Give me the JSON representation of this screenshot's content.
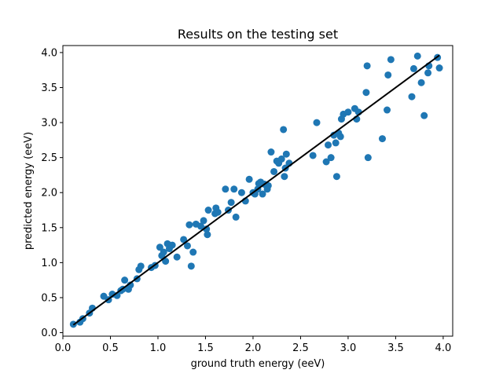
{
  "chart_data": {
    "type": "scatter",
    "title": "Results on the testing set",
    "xlabel": "ground truth energy (eeV)",
    "ylabel": "predicted energy (eeV)",
    "xlim": [
      0.0,
      4.1
    ],
    "ylim": [
      -0.05,
      4.1
    ],
    "xticks": [
      0.0,
      0.5,
      1.0,
      1.5,
      2.0,
      2.5,
      3.0,
      3.5,
      4.0
    ],
    "xtick_labels": [
      "0.0",
      "0.5",
      "1.0",
      "1.5",
      "2.0",
      "2.5",
      "3.0",
      "3.5",
      "4.0"
    ],
    "yticks": [
      0.0,
      0.5,
      1.0,
      1.5,
      2.0,
      2.5,
      3.0,
      3.5,
      4.0
    ],
    "ytick_labels": [
      "0.0",
      "0.5",
      "1.0",
      "1.5",
      "2.0",
      "2.5",
      "3.0",
      "3.5",
      "4.0"
    ],
    "grid": false,
    "colors": {
      "points": "#1f77b4",
      "line": "#000000"
    },
    "series": [
      {
        "type": "scatter",
        "x": [
          0.11,
          0.18,
          0.21,
          0.28,
          0.31,
          0.43,
          0.48,
          0.52,
          0.57,
          0.61,
          0.63,
          0.65,
          0.69,
          0.71,
          0.78,
          0.8,
          0.82,
          0.93,
          0.97,
          1.02,
          1.04,
          1.06,
          1.08,
          1.1,
          1.12,
          1.15,
          1.2,
          1.27,
          1.31,
          1.33,
          1.35,
          1.37,
          1.4,
          1.45,
          1.48,
          1.51,
          1.52,
          1.53,
          1.6,
          1.61,
          1.63,
          1.71,
          1.74,
          1.77,
          1.8,
          1.82,
          1.88,
          1.92,
          1.96,
          2.0,
          2.02,
          2.05,
          2.06,
          2.08,
          2.1,
          2.12,
          2.15,
          2.16,
          2.19,
          2.22,
          2.25,
          2.27,
          2.3,
          2.32,
          2.33,
          2.34,
          2.35,
          2.38,
          2.63,
          2.67,
          2.77,
          2.79,
          2.82,
          2.85,
          2.87,
          2.88,
          2.9,
          2.92,
          2.93,
          2.95,
          3.0,
          3.07,
          3.09,
          3.11,
          3.19,
          3.2,
          3.21,
          3.36,
          3.41,
          3.42,
          3.45,
          3.67,
          3.69,
          3.73,
          3.77,
          3.8,
          3.84,
          3.85,
          3.94,
          3.96
        ],
        "y": [
          0.12,
          0.15,
          0.2,
          0.28,
          0.35,
          0.52,
          0.47,
          0.55,
          0.53,
          0.6,
          0.62,
          0.75,
          0.62,
          0.68,
          0.77,
          0.9,
          0.95,
          0.93,
          0.96,
          1.22,
          1.1,
          1.15,
          1.02,
          1.27,
          1.2,
          1.25,
          1.08,
          1.33,
          1.24,
          1.54,
          0.95,
          1.15,
          1.55,
          1.52,
          1.6,
          1.48,
          1.4,
          1.75,
          1.7,
          1.78,
          1.72,
          2.05,
          1.75,
          1.86,
          2.05,
          1.65,
          2.0,
          1.88,
          2.19,
          2.0,
          1.98,
          2.05,
          2.13,
          2.15,
          1.98,
          2.12,
          2.05,
          2.1,
          2.58,
          2.3,
          2.45,
          2.42,
          2.48,
          2.9,
          2.23,
          2.35,
          2.55,
          2.42,
          2.53,
          3.0,
          2.44,
          2.68,
          2.5,
          2.82,
          2.71,
          2.23,
          2.85,
          2.8,
          3.05,
          3.12,
          3.15,
          3.2,
          3.05,
          3.15,
          3.43,
          3.81,
          2.5,
          2.77,
          3.18,
          3.68,
          3.9,
          3.37,
          3.77,
          3.95,
          3.57,
          3.1,
          3.71,
          3.81,
          3.93,
          3.78
        ]
      },
      {
        "type": "line",
        "x": [
          0.11,
          3.96
        ],
        "y": [
          0.11,
          3.96
        ]
      }
    ]
  }
}
